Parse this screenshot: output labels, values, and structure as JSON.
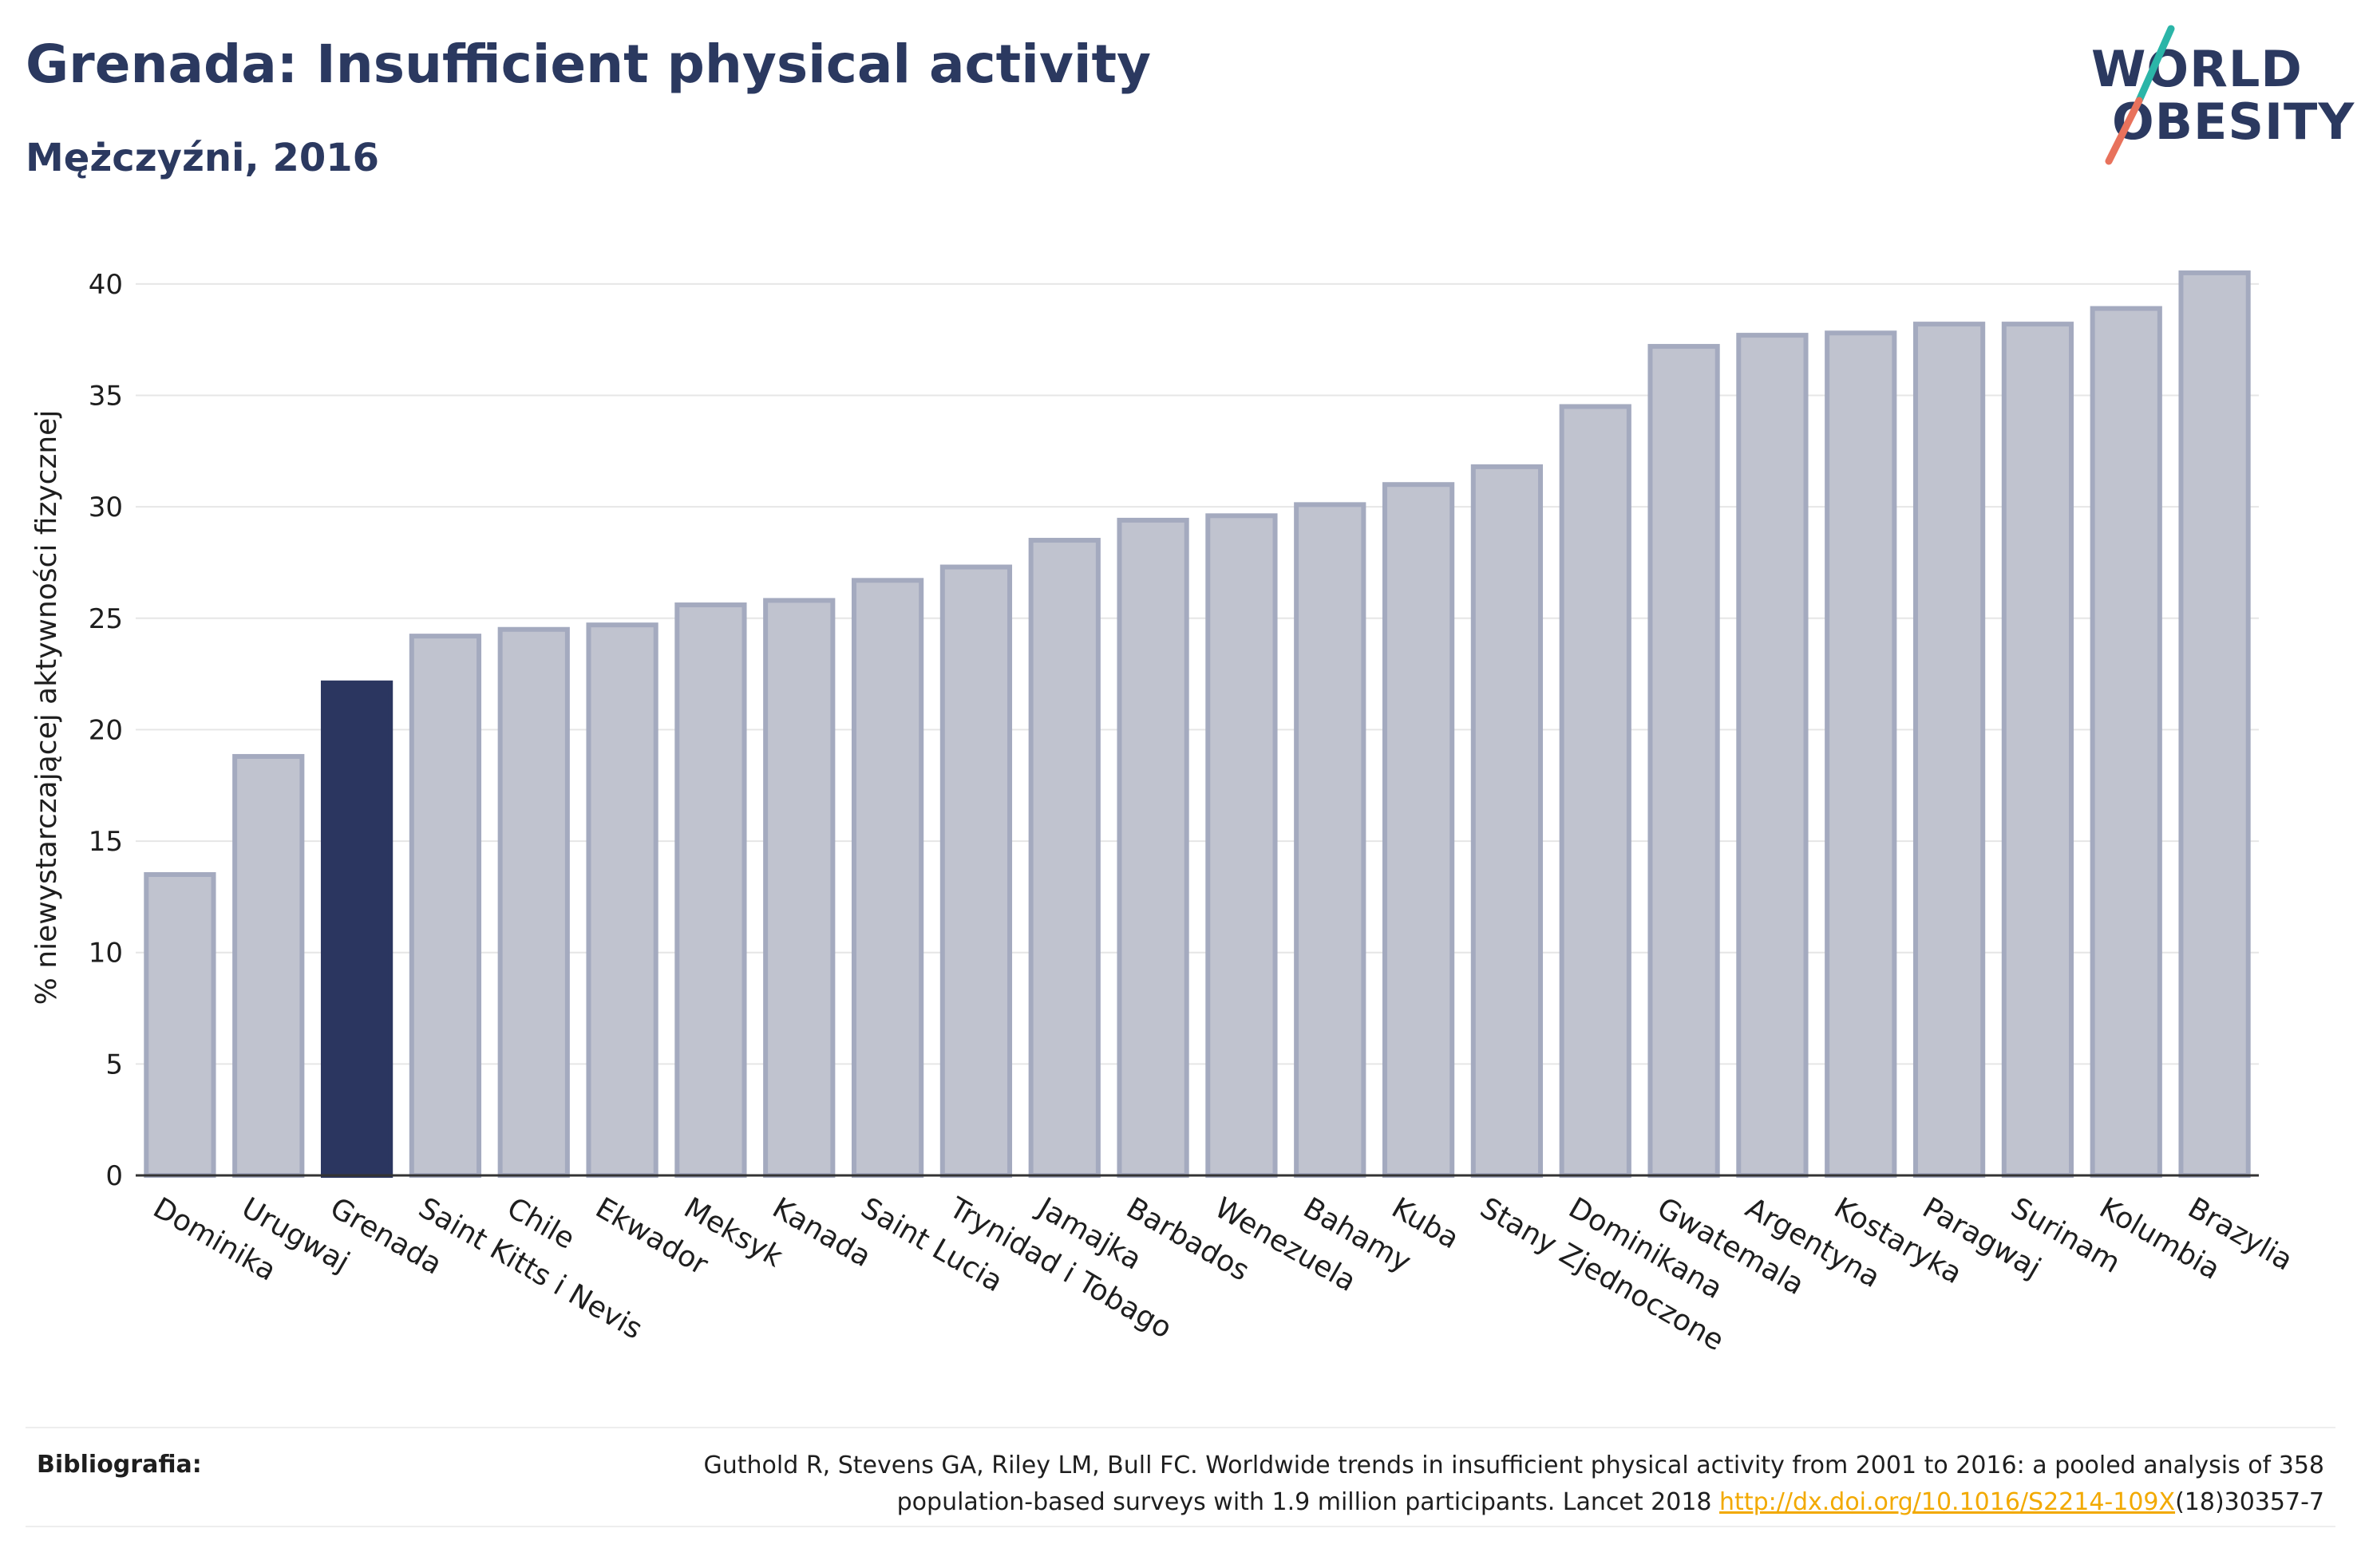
{
  "header": {
    "title": "Grenada: Insufficient physical activity",
    "subtitle": "Mężczyźni, 2016"
  },
  "logo": {
    "line1": "WORLD",
    "line2": "OBESITY",
    "colors": {
      "text": "#2b3960",
      "slash_top": "#2bb5a8",
      "slash_bottom": "#e8725c"
    }
  },
  "chart_data": {
    "type": "bar",
    "categories": [
      "Dominika",
      "Urugwaj",
      "Grenada",
      "Saint Kitts i Nevis",
      "Chile",
      "Ekwador",
      "Meksyk",
      "Kanada",
      "Saint Lucia",
      "Trynidad i Tobago",
      "Jamajka",
      "Barbados",
      "Wenezuela",
      "Bahamy",
      "Kuba",
      "Stany Zjednoczone",
      "Dominikana",
      "Gwatemala",
      "Argentyna",
      "Kostaryka",
      "Paragwaj",
      "Surinam",
      "Kolumbia",
      "Brazylia"
    ],
    "values": [
      13.5,
      18.8,
      22.1,
      24.2,
      24.5,
      24.7,
      25.6,
      25.8,
      26.7,
      27.3,
      28.5,
      29.4,
      29.6,
      30.1,
      31.0,
      31.8,
      34.5,
      37.2,
      37.7,
      37.8,
      38.2,
      38.2,
      38.9,
      40.5
    ],
    "highlight": "Grenada",
    "ylabel": "% niewystarczającej aktywności fizycznej",
    "xlabel": "",
    "ylim": [
      0,
      42
    ],
    "yticks": [
      0,
      5,
      10,
      15,
      20,
      25,
      30,
      35,
      40
    ],
    "grid": true,
    "colors": {
      "default_fill": "#c0c3cf",
      "default_stroke": "#a4aabf",
      "highlight_fill": "#2b3660",
      "axis": "#333333",
      "grid": "#e6e6e6"
    }
  },
  "bibliography": {
    "label": "Bibliografia:",
    "line1": "Guthold R, Stevens GA, Riley LM, Bull FC. Worldwide trends in insufficient physical activity from 2001 to 2016: a pooled analysis of 358",
    "line2_pre": "population-based surveys with 1.9 million participants. Lancet 2018 ",
    "link": "http://dx.doi.org/10.1016/S2214-109X",
    "line2_post": "(18)30357-7"
  }
}
